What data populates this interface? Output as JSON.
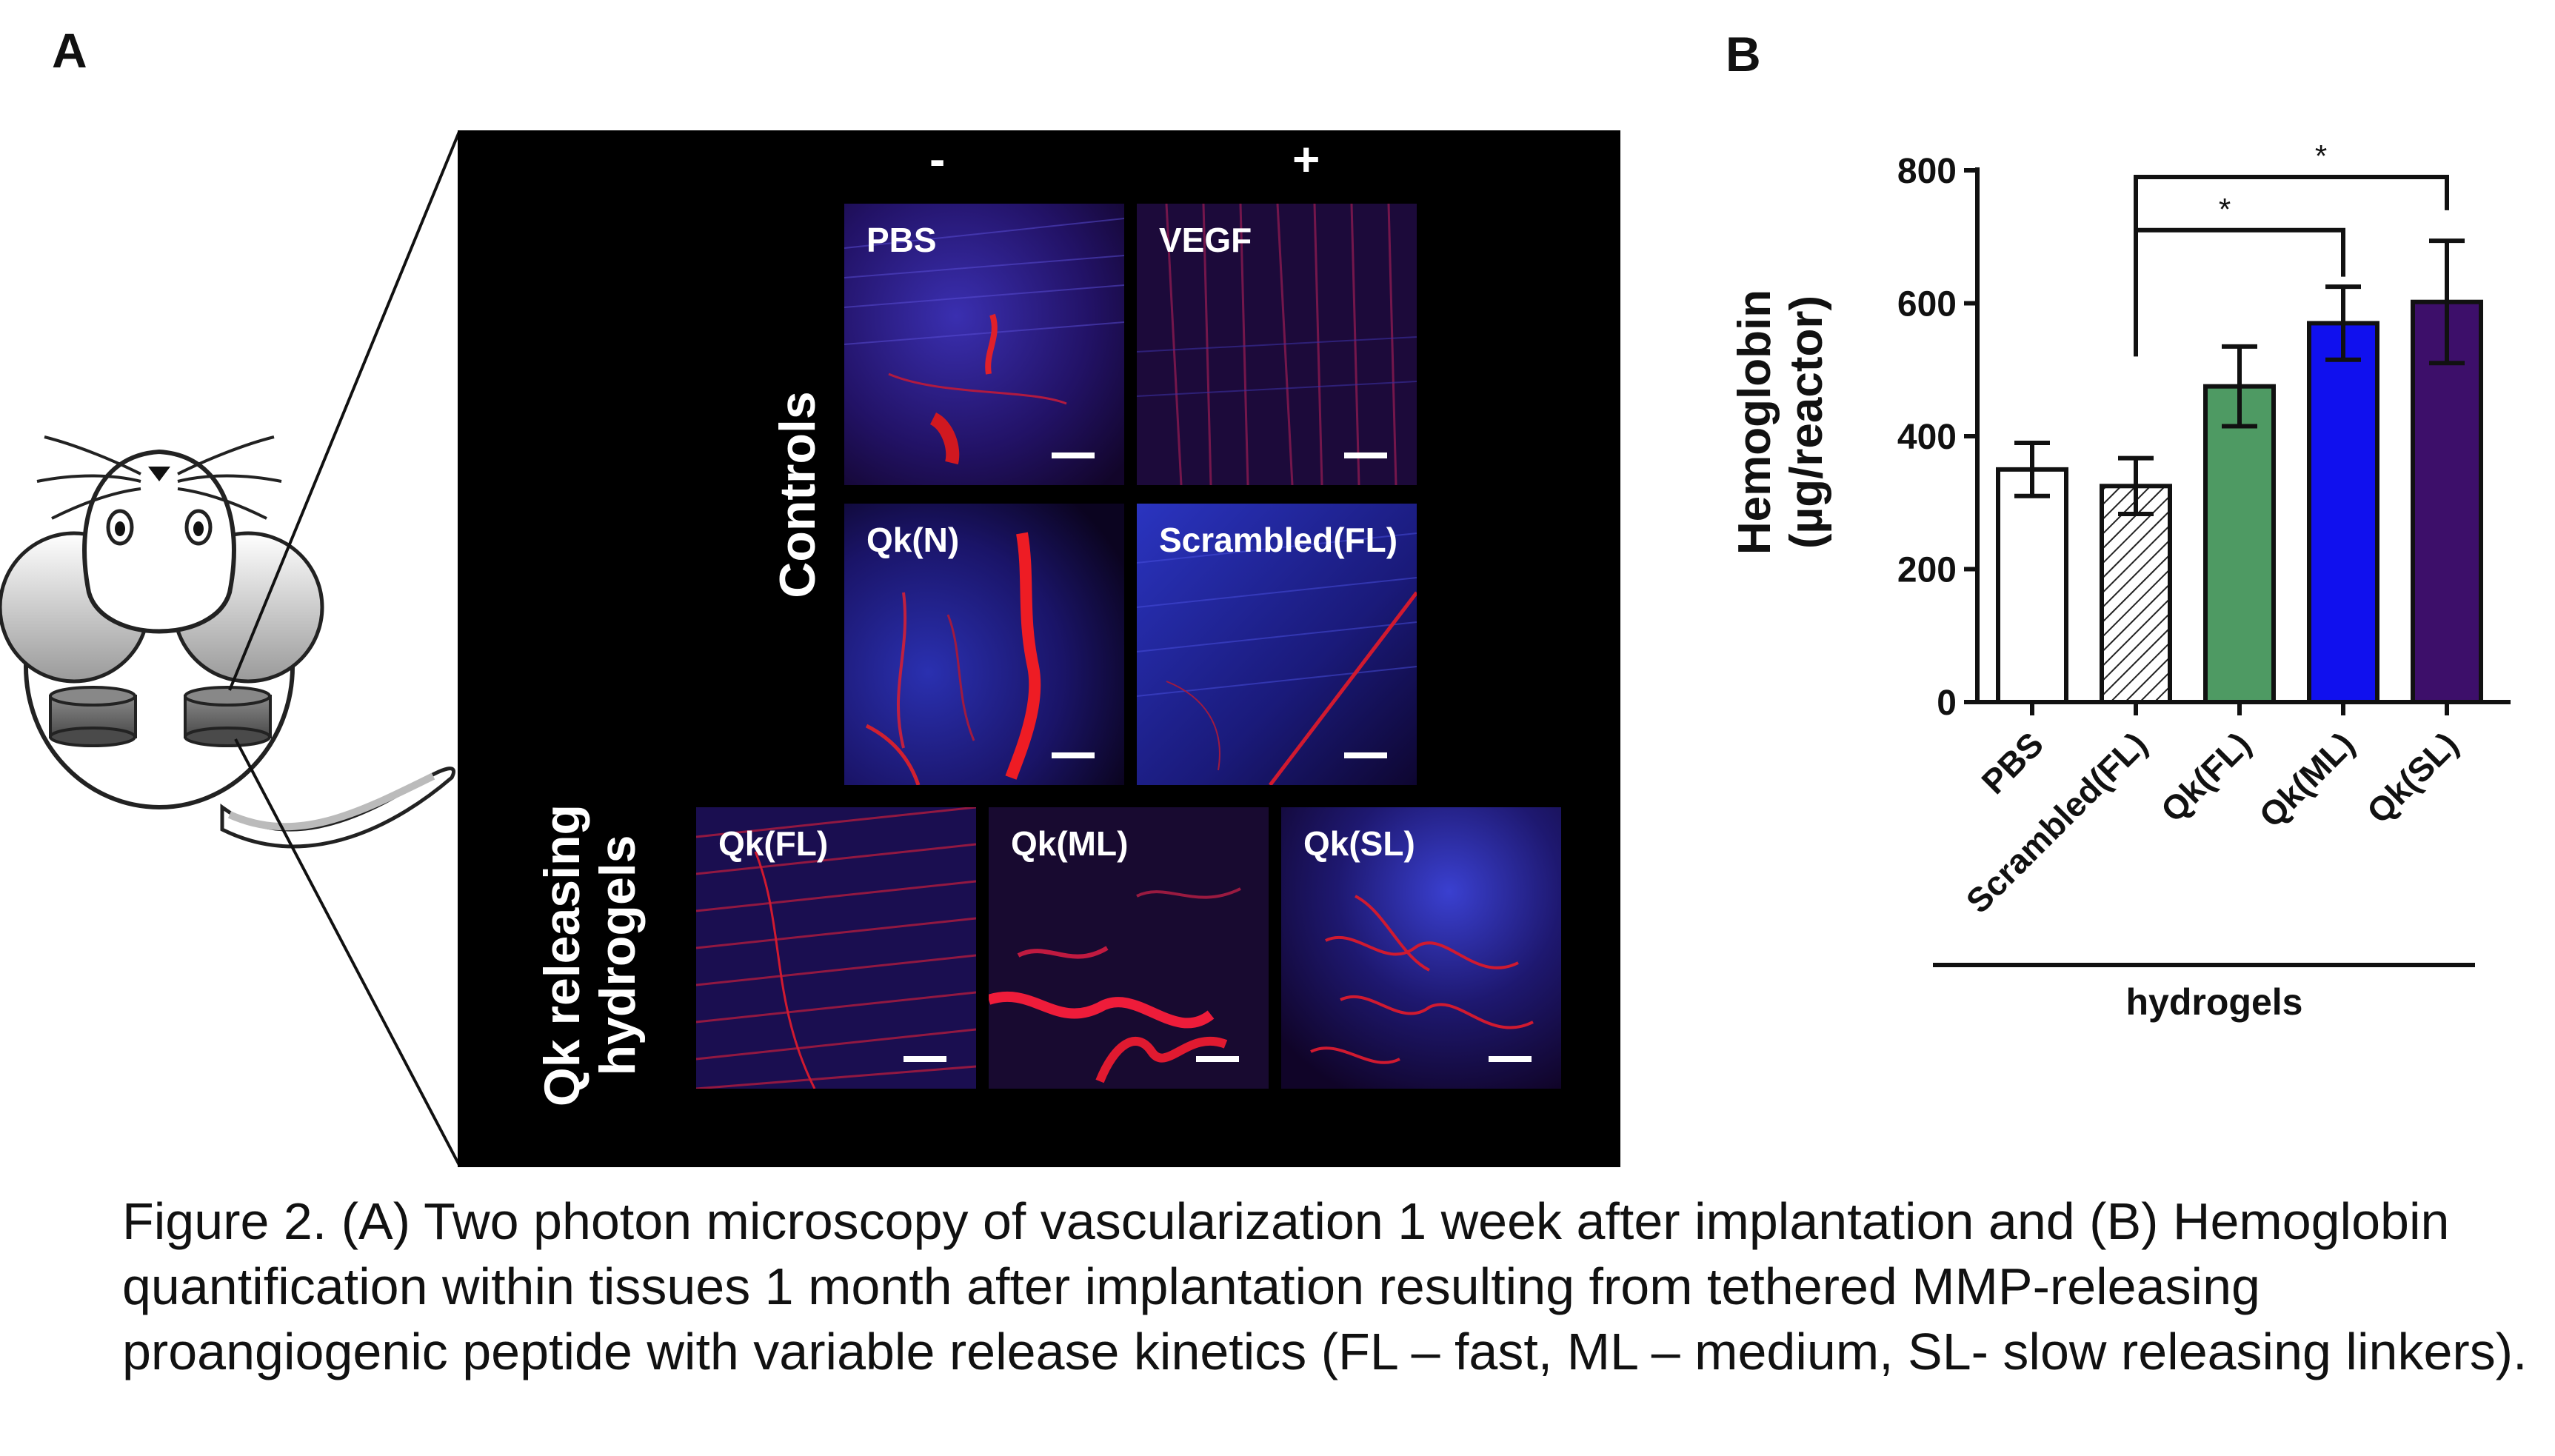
{
  "panel_a": {
    "letter": "A",
    "col_minus": "-",
    "col_plus": "+",
    "group_controls": "Controls",
    "group_qk_line1": "Qk releasing",
    "group_qk_line2": "hydrogels",
    "tiles": [
      {
        "label": "PBS"
      },
      {
        "label": "VEGF"
      },
      {
        "label": "Qk(N)"
      },
      {
        "label": "Scrambled(FL)"
      },
      {
        "label": "Qk(FL)"
      },
      {
        "label": "Qk(ML)"
      },
      {
        "label": "Qk(SL)"
      }
    ]
  },
  "panel_b": {
    "letter": "B"
  },
  "chart_data": {
    "type": "bar",
    "categories": [
      "PBS",
      "Scrambled(FL)",
      "Qk(FL)",
      "Qk(ML)",
      "Qk(SL)"
    ],
    "values": [
      350,
      325,
      475,
      570,
      602
    ],
    "errors": [
      40,
      42,
      60,
      55,
      92
    ],
    "bar_colors": [
      "#ffffff",
      "hatched",
      "#4e9a63",
      "#1010ee",
      "#3d0f6a"
    ],
    "ylabel_line1": "Hemoglobin",
    "ylabel_line2": "(µg/reactor)",
    "ylim": [
      0,
      800
    ],
    "yticks": [
      0,
      200,
      400,
      600,
      800
    ],
    "group_label": "hydrogels",
    "significance": [
      {
        "from": "Scrambled(FL)",
        "to": "Qk(ML)",
        "label": "*"
      },
      {
        "from": "Scrambled(FL)",
        "to": "Qk(SL)",
        "label": "*"
      }
    ]
  },
  "caption": "Figure 2. (A) Two photon microscopy of vascularization 1 week after implantation and (B) Hemoglobin quantification within tissues 1 month after implantation resulting from tethered MMP-releasing proangiogenic peptide with variable release kinetics (FL – fast, ML – medium, SL- slow releasing linkers)."
}
